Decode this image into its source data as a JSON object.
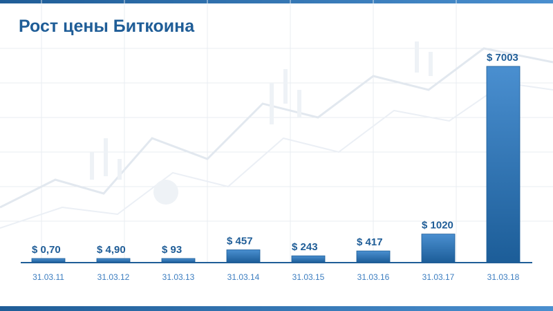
{
  "title": "Рост цены Биткоина",
  "colors": {
    "accent": "#1f5d97",
    "bar_top": "#4a8fd0",
    "bar_bottom": "#1c5d98",
    "axis": "#1f5d97",
    "category_text": "#3b7dc0"
  },
  "chart_data": {
    "type": "bar",
    "title": "Рост цены Биткоина",
    "xlabel": "",
    "ylabel": "",
    "categories": [
      "31.03.11",
      "31.03.12",
      "31.03.13",
      "31.03.14",
      "31.03.15",
      "31.03.16",
      "31.03.17",
      "31.03.18"
    ],
    "values": [
      0.7,
      4.9,
      93,
      457,
      243,
      417,
      1020,
      7003
    ],
    "data_labels": [
      "$ 0,70",
      "$ 4,90",
      "$ 93",
      "$ 457",
      "$ 243",
      "$ 417",
      "$ 1020",
      "$ 7003"
    ],
    "ylim": [
      0,
      7003
    ],
    "grid": false,
    "legend": "none"
  }
}
